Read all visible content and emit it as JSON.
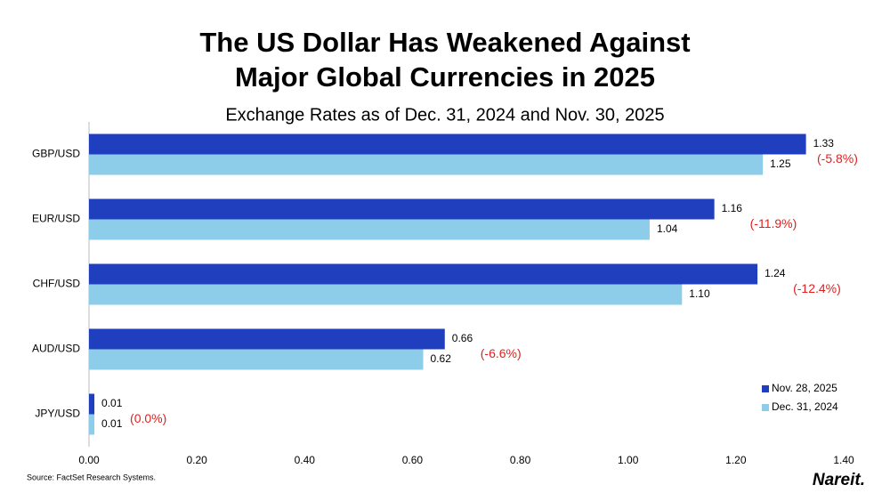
{
  "chart_data": {
    "type": "hbar",
    "title": [
      "The US Dollar Has Weakened Against",
      "Major Global Currencies in 2025"
    ],
    "subtitle": "Exchange Rates as of Dec. 31, 2024 and Nov. 30, 2025",
    "categories": [
      "GBP/USD",
      "EUR/USD",
      "CHF/USD",
      "AUD/USD",
      "JPY/USD"
    ],
    "series": [
      {
        "name": "Nov. 28, 2025",
        "color": "#1f3fbf",
        "values": [
          1.33,
          1.16,
          1.24,
          0.66,
          0.01
        ],
        "value_labels": [
          "1.33",
          "1.16",
          "1.24",
          "0.66",
          "0.01"
        ]
      },
      {
        "name": "Dec. 31, 2024",
        "color": "#8ecdea",
        "values": [
          1.25,
          1.04,
          1.1,
          0.62,
          0.01
        ],
        "value_labels": [
          "1.25",
          "1.04",
          "1.10",
          "0.62",
          "0.01"
        ]
      }
    ],
    "annotations": [
      "(-5.8%)",
      "(-11.9%)",
      "(-12.4%)",
      "(-6.6%)",
      "(0.0%)"
    ],
    "annotation_color": "#e02020",
    "xlim": [
      0,
      1.4
    ],
    "xticks": [
      {
        "value": 0,
        "label": "0.00"
      },
      {
        "value": 0.2,
        "label": "0.20"
      },
      {
        "value": 0.4,
        "label": "0.40"
      },
      {
        "value": 0.6,
        "label": "0.60"
      },
      {
        "value": 0.8,
        "label": "0.80"
      },
      {
        "value": 1,
        "label": "1.00"
      },
      {
        "value": 1.2,
        "label": "1.20"
      },
      {
        "value": 1.4,
        "label": "1.40"
      }
    ],
    "legend": "bottom-right",
    "source": "Source: FactSet Research Systems.",
    "logo": "Nareit."
  }
}
